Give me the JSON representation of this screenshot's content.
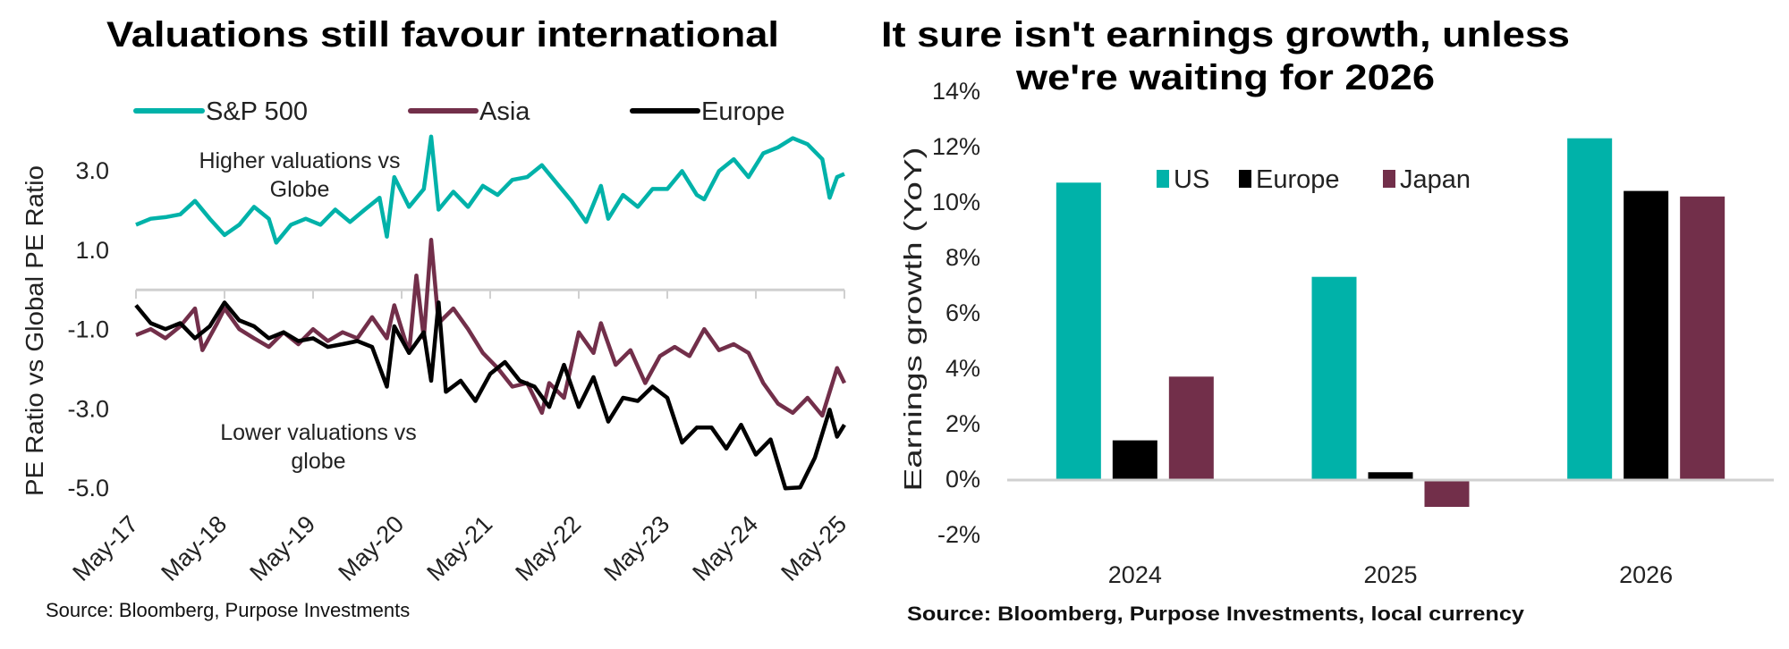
{
  "colors": {
    "teal": "#00B2A9",
    "maroon": "#722F4A",
    "black": "#000000",
    "axis": "#d0d0d0"
  },
  "chart_data": [
    {
      "type": "line",
      "title": "Valuations still favour international",
      "ylabel": "PE Ratio vs Global PE Ratio",
      "xlabel": "",
      "ylim": [
        -5.2,
        4.0
      ],
      "yticks": [
        "3.0",
        "1.0",
        "-1.0",
        "-3.0",
        "-5.0"
      ],
      "ytick_values": [
        3,
        1,
        -1,
        -3,
        -5
      ],
      "xticks": [
        "May-17",
        "May-18",
        "May-19",
        "May-20",
        "May-21",
        "May-22",
        "May-23",
        "May-24",
        "May-25"
      ],
      "xtick_dates": [
        "2017-05",
        "2018-05",
        "2019-05",
        "2020-05",
        "2021-05",
        "2022-05",
        "2023-05",
        "2024-05",
        "2025-05"
      ],
      "legend_position": "top",
      "annotations": [
        {
          "lines": [
            "Higher valuations vs",
            "Globe"
          ]
        },
        {
          "lines": [
            "Lower valuations vs",
            "globe"
          ]
        }
      ],
      "source": "Source: Bloomberg, Purpose Investments",
      "series": [
        {
          "name": "S&P 500",
          "color": "#00B2A9",
          "x": [
            "2017-05",
            "2017-07",
            "2017-09",
            "2017-11",
            "2018-01",
            "2018-03",
            "2018-05",
            "2018-07",
            "2018-09",
            "2018-11",
            "2018-12",
            "2019-02",
            "2019-04",
            "2019-06",
            "2019-08",
            "2019-10",
            "2019-12",
            "2020-02",
            "2020-03",
            "2020-04",
            "2020-06",
            "2020-08",
            "2020-09",
            "2020-10",
            "2020-12",
            "2021-02",
            "2021-04",
            "2021-06",
            "2021-08",
            "2021-10",
            "2021-12",
            "2022-02",
            "2022-04",
            "2022-06",
            "2022-08",
            "2022-09",
            "2022-11",
            "2023-01",
            "2023-03",
            "2023-05",
            "2023-07",
            "2023-09",
            "2023-10",
            "2023-12",
            "2024-02",
            "2024-04",
            "2024-06",
            "2024-08",
            "2024-10",
            "2024-12",
            "2025-02",
            "2025-03",
            "2025-04",
            "2025-05"
          ],
          "y": [
            1.64,
            1.79,
            1.83,
            1.9,
            2.24,
            1.79,
            1.38,
            1.64,
            2.09,
            1.79,
            1.19,
            1.64,
            1.79,
            1.64,
            2.02,
            1.71,
            2.02,
            2.32,
            1.34,
            2.84,
            2.09,
            2.54,
            3.86,
            2.02,
            2.47,
            2.09,
            2.62,
            2.39,
            2.77,
            2.84,
            3.14,
            2.69,
            2.24,
            1.71,
            2.62,
            1.79,
            2.39,
            2.09,
            2.54,
            2.54,
            2.99,
            2.39,
            2.28,
            2.99,
            3.29,
            2.84,
            3.44,
            3.59,
            3.82,
            3.67,
            3.29,
            2.32,
            2.84,
            2.92
          ]
        },
        {
          "name": "Asia",
          "color": "#722F4A",
          "x": [
            "2017-05",
            "2017-07",
            "2017-09",
            "2017-11",
            "2018-01",
            "2018-02",
            "2018-04",
            "2018-05",
            "2018-07",
            "2018-09",
            "2018-11",
            "2019-01",
            "2019-03",
            "2019-05",
            "2019-07",
            "2019-09",
            "2019-11",
            "2020-01",
            "2020-03",
            "2020-04",
            "2020-06",
            "2020-07",
            "2020-08",
            "2020-09",
            "2020-10",
            "2020-12",
            "2021-02",
            "2021-04",
            "2021-06",
            "2021-08",
            "2021-10",
            "2021-12",
            "2022-01",
            "2022-03",
            "2022-05",
            "2022-07",
            "2022-08",
            "2022-10",
            "2022-12",
            "2023-02",
            "2023-04",
            "2023-06",
            "2023-08",
            "2023-10",
            "2023-12",
            "2024-02",
            "2024-04",
            "2024-06",
            "2024-08",
            "2024-10",
            "2024-12",
            "2025-02",
            "2025-04",
            "2025-05"
          ],
          "y": [
            -1.14,
            -0.99,
            -1.22,
            -0.92,
            -0.47,
            -1.52,
            -0.84,
            -0.47,
            -0.99,
            -1.22,
            -1.44,
            -1.07,
            -1.37,
            -0.99,
            -1.29,
            -1.07,
            -1.22,
            -0.69,
            -1.22,
            -0.39,
            -1.59,
            0.36,
            -1.22,
            1.26,
            -0.84,
            -0.47,
            -0.99,
            -1.59,
            -1.97,
            -2.44,
            -2.35,
            -3.1,
            -2.35,
            -2.72,
            -1.07,
            -1.59,
            -0.84,
            -1.89,
            -1.52,
            -2.35,
            -1.67,
            -1.44,
            -1.67,
            -0.99,
            -1.52,
            -1.37,
            -1.59,
            -2.35,
            -2.87,
            -3.1,
            -2.72,
            -3.17,
            -1.97,
            -2.35
          ]
        },
        {
          "name": "Europe",
          "color": "#000000",
          "x": [
            "2017-05",
            "2017-07",
            "2017-09",
            "2017-11",
            "2018-01",
            "2018-03",
            "2018-05",
            "2018-07",
            "2018-09",
            "2018-11",
            "2019-01",
            "2019-03",
            "2019-05",
            "2019-07",
            "2019-09",
            "2019-11",
            "2020-01",
            "2020-03",
            "2020-04",
            "2020-06",
            "2020-08",
            "2020-09",
            "2020-10",
            "2020-11",
            "2021-01",
            "2021-03",
            "2021-05",
            "2021-07",
            "2021-09",
            "2021-11",
            "2022-01",
            "2022-03",
            "2022-05",
            "2022-07",
            "2022-09",
            "2022-11",
            "2023-01",
            "2023-03",
            "2023-05",
            "2023-07",
            "2023-09",
            "2023-11",
            "2024-01",
            "2024-03",
            "2024-05",
            "2024-07",
            "2024-09",
            "2024-11",
            "2025-01",
            "2025-03",
            "2025-04",
            "2025-05"
          ],
          "y": [
            -0.39,
            -0.84,
            -0.99,
            -0.84,
            -1.22,
            -0.92,
            -0.32,
            -0.77,
            -0.92,
            -1.22,
            -1.07,
            -1.29,
            -1.22,
            -1.44,
            -1.37,
            -1.29,
            -1.44,
            -2.44,
            -0.92,
            -1.59,
            -1.07,
            -2.29,
            -0.32,
            -2.57,
            -2.29,
            -2.8,
            -2.12,
            -1.82,
            -2.29,
            -2.44,
            -2.95,
            -1.89,
            -2.95,
            -2.2,
            -3.32,
            -2.72,
            -2.8,
            -2.44,
            -2.72,
            -3.85,
            -3.47,
            -3.47,
            -4.0,
            -3.4,
            -4.15,
            -3.77,
            -5.0,
            -4.98,
            -4.23,
            -3.02,
            -3.7,
            -3.4
          ]
        }
      ]
    },
    {
      "type": "bar",
      "title_lines": [
        "It sure isn't earnings growth, unless",
        "we're waiting for 2026"
      ],
      "ylabel": "Earnings growth (YoY)",
      "xlabel": "",
      "ylim": [
        -2,
        14
      ],
      "yticks": [
        "14%",
        "12%",
        "10%",
        "8%",
        "6%",
        "4%",
        "2%",
        "0%",
        "-2%"
      ],
      "ytick_values": [
        14,
        12,
        10,
        8,
        6,
        4,
        2,
        0,
        -2
      ],
      "categories": [
        "2024",
        "2025",
        "2026"
      ],
      "legend_position": "top-center",
      "source": "Source: Bloomberg, Purpose Investments, local currency",
      "series": [
        {
          "name": "US",
          "color": "#00B2A9",
          "values": [
            10.7,
            7.3,
            12.3
          ]
        },
        {
          "name": "Europe",
          "color": "#000000",
          "values": [
            1.4,
            0.25,
            10.4
          ]
        },
        {
          "name": "Japan",
          "color": "#722F4A",
          "values": [
            3.7,
            -1.0,
            10.2
          ]
        }
      ]
    }
  ]
}
